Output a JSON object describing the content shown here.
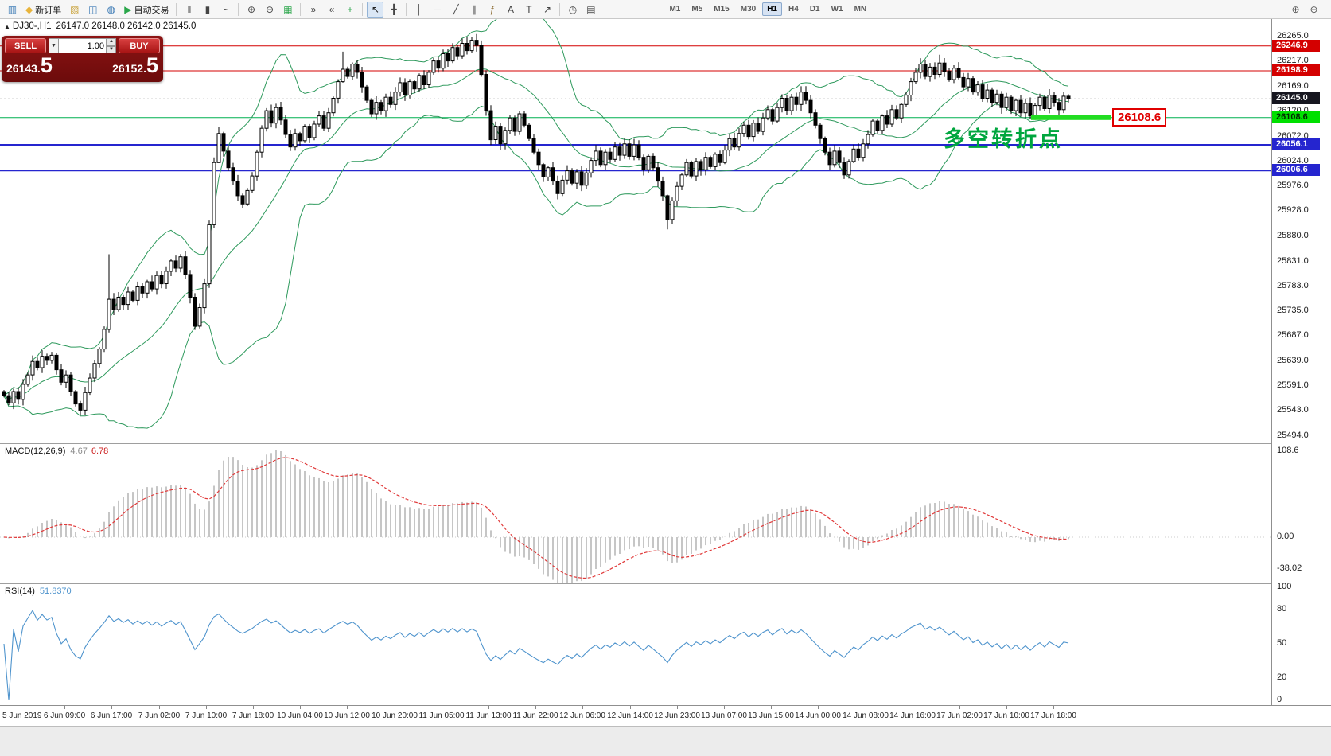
{
  "toolbar": {
    "items": [
      {
        "name": "new-chart-button",
        "glyph": "▥",
        "c": "#3f7cb6"
      },
      {
        "name": "new-order-button",
        "glyph": "◆",
        "c": "#e8b43c",
        "label": "新订单"
      },
      {
        "name": "chart-profiles-button",
        "glyph": "▧",
        "c": "#c9a23a"
      },
      {
        "name": "data-window-button",
        "glyph": "◫",
        "c": "#3f7cb6"
      },
      {
        "name": "market-watch-button",
        "glyph": "◍",
        "c": "#3f7cb6"
      },
      {
        "name": "autotrade-button",
        "glyph": "▶",
        "c": "#2aa64a",
        "label": "自动交易"
      },
      {
        "sep": true
      },
      {
        "name": "bar-chart-type-button",
        "glyph": "‖",
        "c": "#444444"
      },
      {
        "name": "candlestick-type-button",
        "glyph": "▮",
        "c": "#444444"
      },
      {
        "name": "line-chart-type-button",
        "glyph": "~",
        "c": "#444444"
      },
      {
        "sep": true
      },
      {
        "name": "zoom-in-button",
        "glyph": "⊕",
        "c": "#444444"
      },
      {
        "name": "zoom-out-button",
        "glyph": "⊖",
        "c": "#444444"
      },
      {
        "name": "tile-windows-button",
        "glyph": "▦",
        "c": "#2aa64a"
      },
      {
        "sep": true
      },
      {
        "name": "auto-scroll-button",
        "glyph": "»",
        "c": "#444444"
      },
      {
        "name": "chart-shift-button",
        "glyph": "«",
        "c": "#444444"
      },
      {
        "name": "indicators-button",
        "glyph": "+",
        "c": "#2aa64a"
      },
      {
        "sep": true
      },
      {
        "name": "cursor-button",
        "glyph": "↖",
        "c": "#222222",
        "active": true
      },
      {
        "name": "crosshair-button",
        "glyph": "╋",
        "c": "#444444"
      },
      {
        "sep": true
      },
      {
        "name": "vertical-line-button",
        "glyph": "│",
        "c": "#444444"
      },
      {
        "name": "horizontal-line-button",
        "glyph": "─",
        "c": "#444444"
      },
      {
        "name": "trendline-button",
        "glyph": "╱",
        "c": "#444444"
      },
      {
        "name": "channel-button",
        "glyph": "∥",
        "c": "#444444"
      },
      {
        "name": "fibonacci-button",
        "glyph": "ƒ",
        "c": "#8a6a2f"
      },
      {
        "name": "text-button",
        "glyph": "A",
        "c": "#444444"
      },
      {
        "name": "text-label-button",
        "glyph": "T",
        "c": "#444444"
      },
      {
        "name": "arrows-button",
        "glyph": "↗",
        "c": "#444444"
      },
      {
        "sep": true
      },
      {
        "name": "period-button",
        "glyph": "◷",
        "c": "#444444"
      },
      {
        "name": "template-button",
        "glyph": "▤",
        "c": "#444444"
      }
    ],
    "timeframes": [
      {
        "label": "M1"
      },
      {
        "label": "M5"
      },
      {
        "label": "M15"
      },
      {
        "label": "M30"
      },
      {
        "label": "H1",
        "active": true
      },
      {
        "label": "H4"
      },
      {
        "label": "D1"
      },
      {
        "label": "W1"
      },
      {
        "label": "MN"
      }
    ],
    "right_items": [
      {
        "name": "magnifier-plus-button",
        "glyph": "⊕",
        "c": "#555555"
      },
      {
        "name": "magnifier-minus-button",
        "glyph": "⊖",
        "c": "#555555"
      }
    ]
  },
  "header": {
    "collapse_arrow": "▲",
    "symbol": "DJ30-,H1",
    "ohlc": "26147.0 26148.0 26142.0 26145.0"
  },
  "trade_panel": {
    "sell_label": "SELL",
    "buy_label": "BUY",
    "volume": "1.00",
    "sell_price_main": "26143.",
    "sell_price_pips": "5",
    "buy_price_main": "26152.",
    "buy_price_pips": "5"
  },
  "indicators": {
    "macd": {
      "name": "MACD(12,26,9)",
      "main_value": "4.67",
      "signal_value": "6.78"
    },
    "rsi": {
      "name": "RSI(14)",
      "value": "51.8370"
    }
  },
  "annotations": {
    "turning_point_text": "多空转折点",
    "price_tag": "26108.6"
  },
  "chart_data": {
    "type": "candlestick",
    "symbol": "DJ30-",
    "timeframe": "H1",
    "ohlc_header": {
      "open": "26147.0",
      "high": "26148.0",
      "low": "26142.0",
      "close": "26145.0"
    },
    "price_axis": {
      "max": 26265.0,
      "min": 25494.0,
      "ticks": [
        "26265.0",
        "26217.0",
        "26169.0",
        "26120.0",
        "26072.0",
        "26024.0",
        "25976.0",
        "25928.0",
        "25880.0",
        "25831.0",
        "25783.0",
        "25735.0",
        "25687.0",
        "25639.0",
        "25591.0",
        "25543.0",
        "25494.0"
      ]
    },
    "current_price": {
      "price": 26145.0,
      "label": "26145.0",
      "bg": "#16161f",
      "text": "#ffffff"
    },
    "key_price": 26108.6,
    "levels": [
      {
        "price": 26246.9,
        "label": "26246.9",
        "line": "#d40000",
        "width": 1,
        "badge_bg": "#d40000",
        "badge_text": "#ffffff"
      },
      {
        "price": 26198.9,
        "label": "26198.9",
        "line": "#d40000",
        "width": 1,
        "badge_bg": "#d40000",
        "badge_text": "#ffffff"
      },
      {
        "price": 26108.6,
        "label": "26108.6",
        "line": "#00b050",
        "width": 1,
        "badge_bg": "#00e000",
        "badge_text": "#002a00",
        "key": true
      },
      {
        "price": 26056.1,
        "label": "26056.1",
        "line": "#2525cf",
        "width": 2,
        "badge_bg": "#2525cf",
        "badge_text": "#ffffff"
      },
      {
        "price": 26006.6,
        "label": "26006.6",
        "line": "#2525cf",
        "width": 2,
        "badge_bg": "#2525cf",
        "badge_text": "#ffffff"
      }
    ],
    "bollinger": {
      "period": 20,
      "deviation": 2,
      "color": "#2f9a5d"
    },
    "candles": {
      "bull_fill": "#ffffff",
      "bear_fill": "#000000",
      "stroke": "#000000",
      "first_open": 25580,
      "closes": [
        25572,
        25558,
        25580,
        25565,
        25594,
        25612,
        25638,
        25626,
        25648,
        25640,
        25650,
        25622,
        25598,
        25612,
        25580,
        25556,
        25544,
        25578,
        25606,
        25634,
        25662,
        25700,
        25758,
        25738,
        25762,
        25748,
        25772,
        25756,
        25782,
        25770,
        25792,
        25778,
        25804,
        25788,
        25812,
        25832,
        25818,
        25840,
        25806,
        25762,
        25706,
        25742,
        25788,
        25902,
        26022,
        26078,
        26044,
        26012,
        25986,
        25958,
        25942,
        25968,
        25996,
        26042,
        26088,
        26122,
        26098,
        26128,
        26104,
        26076,
        26052,
        26078,
        26064,
        26092,
        26070,
        26096,
        26112,
        26088,
        26118,
        26146,
        26178,
        26202,
        26188,
        26212,
        26196,
        26168,
        26142,
        26116,
        26138,
        26122,
        26148,
        26134,
        26158,
        26176,
        26152,
        26178,
        26164,
        26190,
        26172,
        26196,
        26218,
        26204,
        26232,
        26218,
        26244,
        26228,
        26252,
        26238,
        26258,
        26248,
        26192,
        26122,
        26066,
        26092,
        26058,
        26084,
        26108,
        26082,
        26116,
        26094,
        26068,
        26042,
        26018,
        25994,
        26012,
        25986,
        25962,
        25988,
        26006,
        25982,
        26004,
        25978,
        26002,
        26026,
        26044,
        26018,
        26042,
        26028,
        26052,
        26036,
        26058,
        26034,
        26056,
        26032,
        26008,
        26034,
        26012,
        25986,
        25958,
        25912,
        25948,
        25976,
        25998,
        26022,
        25996,
        26024,
        26008,
        26032,
        26014,
        26038,
        26022,
        26046,
        26068,
        26052,
        26078,
        26094,
        26072,
        26098,
        26082,
        26108,
        26124,
        26102,
        26128,
        26146,
        26122,
        26148,
        26134,
        26158,
        26142,
        26118,
        26094,
        26068,
        26042,
        26018,
        26044,
        26022,
        25998,
        26024,
        26048,
        26032,
        26058,
        26076,
        26102,
        26084,
        26112,
        26096,
        26124,
        26108,
        26134,
        26152,
        26178,
        26196,
        26212,
        26188,
        26206,
        26192,
        26214,
        26198,
        26182,
        26204,
        26186,
        26168,
        26184,
        26158,
        26172,
        26146,
        26162,
        26138,
        26154,
        26128,
        26148,
        26122,
        26142,
        26118,
        26136,
        26112,
        26132,
        26148,
        26126,
        26152,
        26138,
        26124,
        26150,
        26145
      ],
      "wick_overrides": {
        "22": [
          25845,
          25694
        ],
        "43": [
          25910,
          25780
        ],
        "44": [
          26032,
          25896
        ],
        "45": [
          26090,
          26038
        ],
        "71": [
          26236,
          26176
        ],
        "92": [
          26240,
          26198
        ],
        "99": [
          26270,
          26236
        ],
        "139": [
          25960,
          25893
        ],
        "196": [
          26230,
          26186
        ]
      }
    },
    "macd": {
      "fast": 12,
      "slow": 26,
      "signal": 9,
      "scale_max": "108.6",
      "scale_zero": "0.00",
      "scale_min": "-38.02",
      "histogram_color": "#c6c6c6",
      "signal_color": "#e03a3a"
    },
    "rsi": {
      "period": 14,
      "scale": [
        "100",
        "80",
        "50",
        "20",
        "0"
      ],
      "color": "#4f94cd"
    },
    "time_labels": [
      "5 Jun 2019",
      "6 Jun 09:00",
      "6 Jun 17:00",
      "7 Jun 02:00",
      "7 Jun 10:00",
      "7 Jun 18:00",
      "10 Jun 04:00",
      "10 Jun 12:00",
      "10 Jun 20:00",
      "11 Jun 05:00",
      "11 Jun 13:00",
      "11 Jun 22:00",
      "12 Jun 06:00",
      "12 Jun 14:00",
      "12 Jun 23:00",
      "13 Jun 07:00",
      "13 Jun 15:00",
      "14 Jun 00:00",
      "14 Jun 08:00",
      "14 Jun 16:00",
      "17 Jun 02:00",
      "17 Jun 10:00",
      "17 Jun 18:00"
    ]
  }
}
